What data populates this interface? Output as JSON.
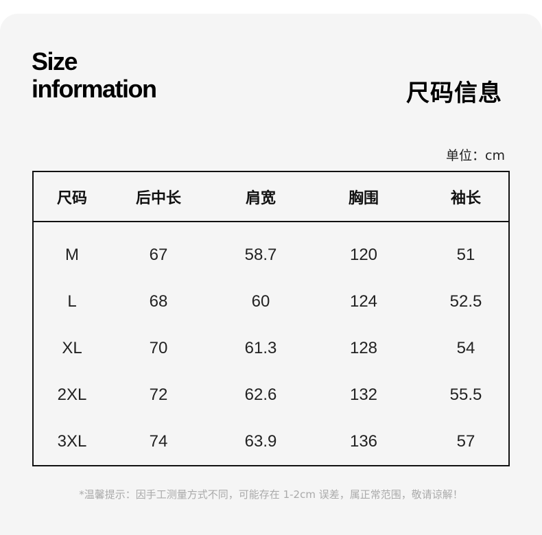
{
  "title_en_line1": "Size",
  "title_en_line2": "information",
  "title_cn": "尺码信息",
  "unit": "单位：cm",
  "table": {
    "headers": [
      "尺码",
      "后中长",
      "肩宽",
      "胸围",
      "袖长"
    ],
    "rows": [
      [
        "M",
        "67",
        "58.7",
        "120",
        "51"
      ],
      [
        "L",
        "68",
        "60",
        "124",
        "52.5"
      ],
      [
        "XL",
        "70",
        "61.3",
        "128",
        "54"
      ],
      [
        "2XL",
        "72",
        "62.6",
        "132",
        "55.5"
      ],
      [
        "3XL",
        "74",
        "63.9",
        "136",
        "57"
      ]
    ]
  },
  "note": "*温馨提示：因手工测量方式不同，可能存在 1-2cm 误差，属正常范围，敬请谅解！"
}
